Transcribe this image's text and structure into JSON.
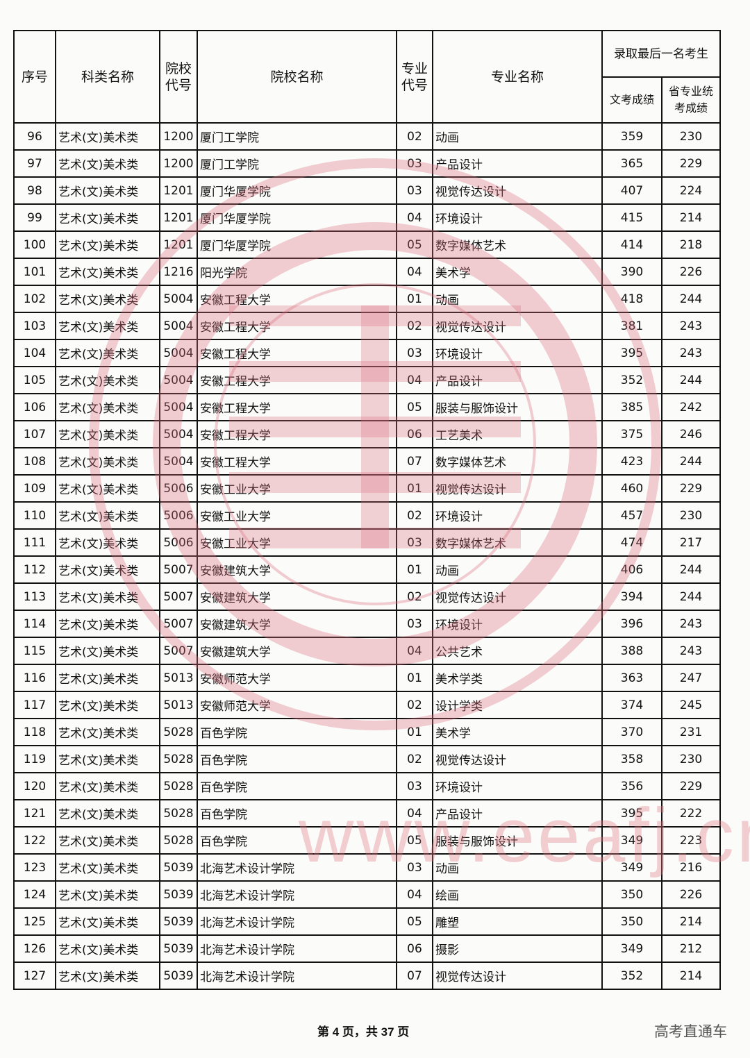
{
  "table": {
    "headers": {
      "seq": "序号",
      "category": "科类名称",
      "school_code": "院校代号",
      "school_name": "院校名称",
      "major_code": "专业代号",
      "major_name": "专业名称",
      "last_admitted": "录取最后一名考生",
      "culture_score": "文考成绩",
      "art_score": "省专业统考成绩"
    },
    "rows": [
      [
        "96",
        "艺术(文)美术类",
        "1200",
        "厦门工学院",
        "02",
        "动画",
        "359",
        "230"
      ],
      [
        "97",
        "艺术(文)美术类",
        "1200",
        "厦门工学院",
        "03",
        "产品设计",
        "365",
        "229"
      ],
      [
        "98",
        "艺术(文)美术类",
        "1201",
        "厦门华厦学院",
        "03",
        "视觉传达设计",
        "407",
        "224"
      ],
      [
        "99",
        "艺术(文)美术类",
        "1201",
        "厦门华厦学院",
        "04",
        "环境设计",
        "415",
        "214"
      ],
      [
        "100",
        "艺术(文)美术类",
        "1201",
        "厦门华厦学院",
        "05",
        "数字媒体艺术",
        "414",
        "218"
      ],
      [
        "101",
        "艺术(文)美术类",
        "1216",
        "阳光学院",
        "04",
        "美术学",
        "390",
        "226"
      ],
      [
        "102",
        "艺术(文)美术类",
        "5004",
        "安徽工程大学",
        "01",
        "动画",
        "418",
        "244"
      ],
      [
        "103",
        "艺术(文)美术类",
        "5004",
        "安徽工程大学",
        "02",
        "视觉传达设计",
        "381",
        "243"
      ],
      [
        "104",
        "艺术(文)美术类",
        "5004",
        "安徽工程大学",
        "03",
        "环境设计",
        "395",
        "243"
      ],
      [
        "105",
        "艺术(文)美术类",
        "5004",
        "安徽工程大学",
        "04",
        "产品设计",
        "352",
        "244"
      ],
      [
        "106",
        "艺术(文)美术类",
        "5004",
        "安徽工程大学",
        "05",
        "服装与服饰设计",
        "385",
        "242"
      ],
      [
        "107",
        "艺术(文)美术类",
        "5004",
        "安徽工程大学",
        "06",
        "工艺美术",
        "375",
        "246"
      ],
      [
        "108",
        "艺术(文)美术类",
        "5004",
        "安徽工程大学",
        "07",
        "数字媒体艺术",
        "423",
        "244"
      ],
      [
        "109",
        "艺术(文)美术类",
        "5006",
        "安徽工业大学",
        "01",
        "视觉传达设计",
        "460",
        "229"
      ],
      [
        "110",
        "艺术(文)美术类",
        "5006",
        "安徽工业大学",
        "02",
        "环境设计",
        "457",
        "230"
      ],
      [
        "111",
        "艺术(文)美术类",
        "5006",
        "安徽工业大学",
        "03",
        "数字媒体艺术",
        "474",
        "217"
      ],
      [
        "112",
        "艺术(文)美术类",
        "5007",
        "安徽建筑大学",
        "01",
        "动画",
        "406",
        "244"
      ],
      [
        "113",
        "艺术(文)美术类",
        "5007",
        "安徽建筑大学",
        "02",
        "视觉传达设计",
        "394",
        "244"
      ],
      [
        "114",
        "艺术(文)美术类",
        "5007",
        "安徽建筑大学",
        "03",
        "环境设计",
        "396",
        "243"
      ],
      [
        "115",
        "艺术(文)美术类",
        "5007",
        "安徽建筑大学",
        "04",
        "公共艺术",
        "388",
        "243"
      ],
      [
        "116",
        "艺术(文)美术类",
        "5013",
        "安徽师范大学",
        "01",
        "美术学类",
        "363",
        "247"
      ],
      [
        "117",
        "艺术(文)美术类",
        "5013",
        "安徽师范大学",
        "02",
        "设计学类",
        "374",
        "245"
      ],
      [
        "118",
        "艺术(文)美术类",
        "5028",
        "百色学院",
        "01",
        "美术学",
        "370",
        "231"
      ],
      [
        "119",
        "艺术(文)美术类",
        "5028",
        "百色学院",
        "02",
        "视觉传达设计",
        "358",
        "230"
      ],
      [
        "120",
        "艺术(文)美术类",
        "5028",
        "百色学院",
        "03",
        "环境设计",
        "356",
        "229"
      ],
      [
        "121",
        "艺术(文)美术类",
        "5028",
        "百色学院",
        "04",
        "产品设计",
        "395",
        "222"
      ],
      [
        "122",
        "艺术(文)美术类",
        "5028",
        "百色学院",
        "05",
        "服装与服饰设计",
        "349",
        "223"
      ],
      [
        "123",
        "艺术(文)美术类",
        "5039",
        "北海艺术设计学院",
        "03",
        "动画",
        "349",
        "216"
      ],
      [
        "124",
        "艺术(文)美术类",
        "5039",
        "北海艺术设计学院",
        "04",
        "绘画",
        "350",
        "226"
      ],
      [
        "125",
        "艺术(文)美术类",
        "5039",
        "北海艺术设计学院",
        "05",
        "雕塑",
        "350",
        "214"
      ],
      [
        "126",
        "艺术(文)美术类",
        "5039",
        "北海艺术设计学院",
        "06",
        "摄影",
        "349",
        "212"
      ],
      [
        "127",
        "艺术(文)美术类",
        "5039",
        "北海艺术设计学院",
        "07",
        "视觉传达设计",
        "352",
        "214"
      ]
    ]
  },
  "footer": {
    "page_info": "第 4 页，共 37 页",
    "brand": "高考直通车"
  },
  "watermark": {
    "url": "www.eeafj.cn",
    "color": "#e07a86"
  }
}
